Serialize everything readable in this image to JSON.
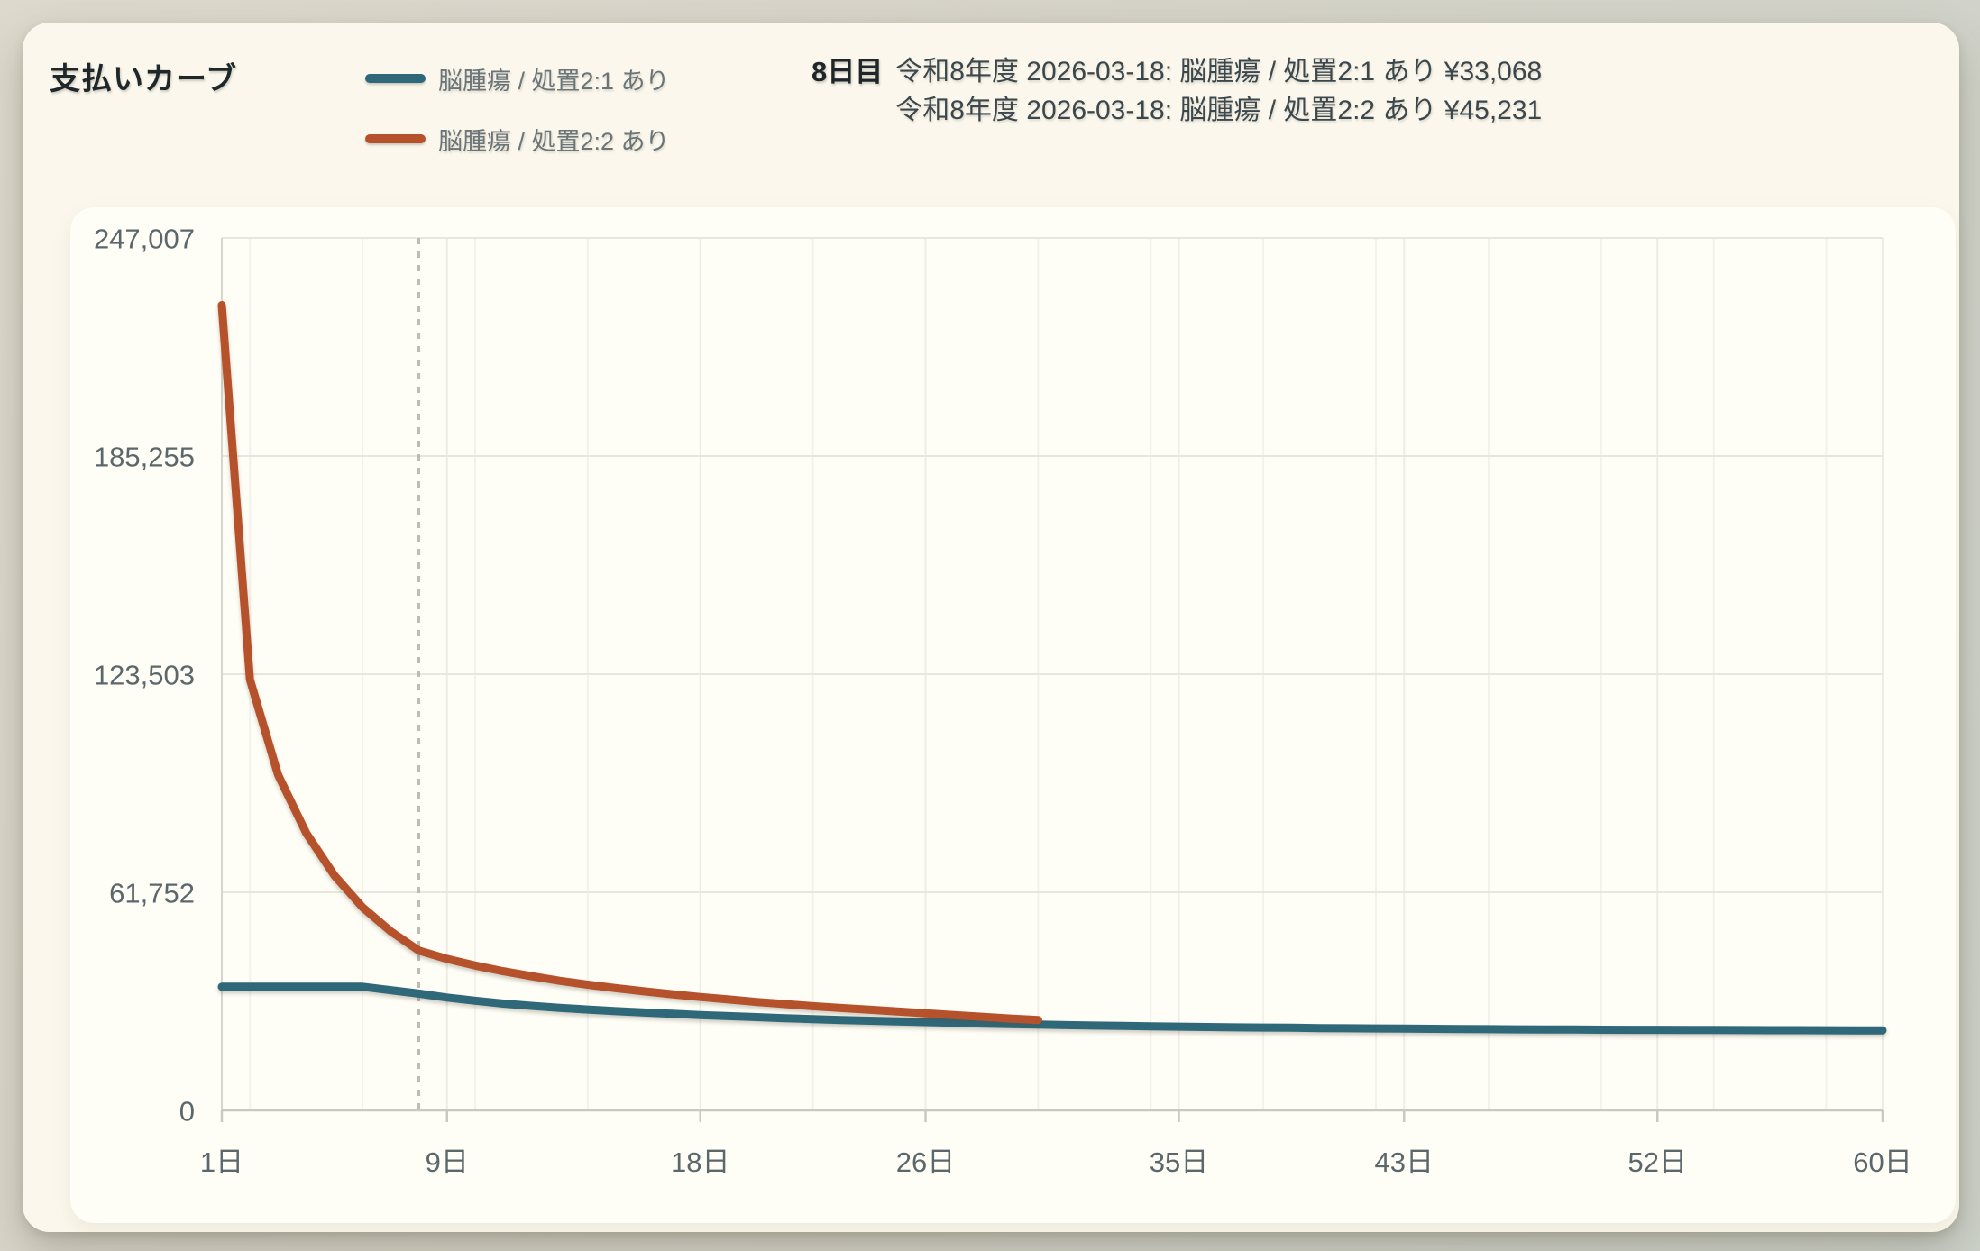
{
  "header": {
    "title": "支払いカーブ",
    "legend": [
      {
        "label": "脳腫瘍 / 処置2:1 あり",
        "color": "#2f6879"
      },
      {
        "label": "脳腫瘍 / 処置2:2 あり",
        "color": "#b5512b"
      }
    ],
    "tooltip": {
      "day_label": "8日目",
      "lines": [
        {
          "text": "令和8年度 2026-03-18: 脳腫瘍 / 処置2:1 あり ¥33,068"
        },
        {
          "text": "令和8年度 2026-03-18: 脳腫瘍 / 処置2:2 あり ¥45,231"
        }
      ]
    }
  },
  "colors": {
    "series_teal": "#2f6879",
    "series_orange": "#b5512b",
    "grid_major": "#e9e6dd",
    "grid_vertical": "#efece3",
    "grid_minor": "#f4f1e9",
    "axis": "#cbc8bf",
    "axis_left": "#d8d5cc",
    "marker_dash": "#bdbbb5",
    "tick_text": "#5c676b"
  },
  "chart_data": {
    "type": "line",
    "title": "支払いカーブ",
    "xlabel": "",
    "ylabel": "",
    "xlim": [
      1,
      60
    ],
    "ylim": [
      0,
      247007
    ],
    "grid": true,
    "legend_position": "top",
    "marker": {
      "day": 8
    },
    "x_ticks": [
      {
        "day": 1,
        "label": "1日"
      },
      {
        "day": 9,
        "label": "9日"
      },
      {
        "day": 18,
        "label": "18日"
      },
      {
        "day": 26,
        "label": "26日"
      },
      {
        "day": 35,
        "label": "35日"
      },
      {
        "day": 43,
        "label": "43日"
      },
      {
        "day": 52,
        "label": "52日"
      },
      {
        "day": 60,
        "label": "60日"
      }
    ],
    "y_ticks": [
      {
        "value": 0,
        "label": "0"
      },
      {
        "value": 61752,
        "label": "61,752"
      },
      {
        "value": 123503,
        "label": "123,503"
      },
      {
        "value": 185255,
        "label": "185,255"
      },
      {
        "value": 247007,
        "label": "247,007"
      }
    ],
    "series": [
      {
        "name": "脳腫瘍 / 処置2:1 あり",
        "color": "#2f6879",
        "start_day": 1,
        "values": [
          35000,
          35000,
          35000,
          35000,
          35000,
          35000,
          34050,
          33068,
          31950,
          31050,
          30250,
          29600,
          29050,
          28550,
          28100,
          27700,
          27350,
          27000,
          26700,
          26400,
          26100,
          25850,
          25600,
          25400,
          25200,
          25000,
          24800,
          24600,
          24450,
          24300,
          24150,
          24000,
          23900,
          23800,
          23700,
          23600,
          23500,
          23450,
          23400,
          23300,
          23250,
          23200,
          23150,
          23100,
          23050,
          23000,
          22950,
          22900,
          22880,
          22850,
          22820,
          22800,
          22780,
          22760,
          22740,
          22720,
          22700,
          22680,
          22660,
          22650
        ]
      },
      {
        "name": "脳腫瘍 / 処置2:2 あり",
        "color": "#b5512b",
        "start_day": 1,
        "values": [
          228000,
          122000,
          95000,
          78500,
          66500,
          57500,
          50700,
          45231,
          42900,
          41000,
          39400,
          38000,
          36700,
          35600,
          34600,
          33700,
          32900,
          32100,
          31400,
          30700,
          30100,
          29500,
          29000,
          28500,
          28000,
          27500,
          27000,
          26500,
          26000,
          25600
        ]
      }
    ]
  }
}
